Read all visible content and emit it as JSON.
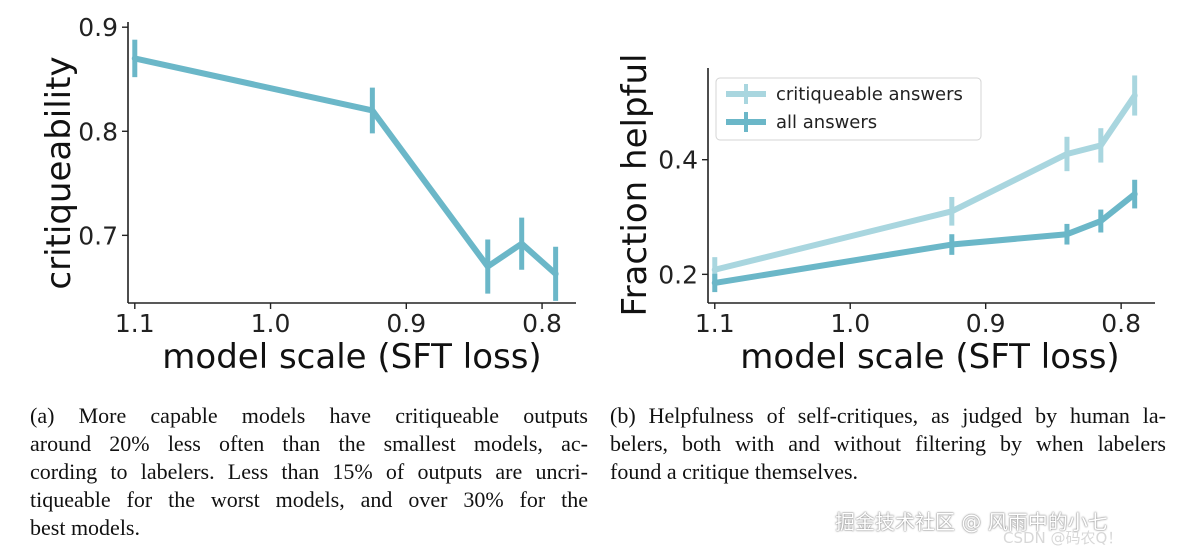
{
  "chart_data": [
    {
      "type": "line",
      "title": "",
      "xlabel": "model scale (SFT loss)",
      "ylabel": "critiqueability",
      "x_inverted": true,
      "xlim": [
        1.105,
        0.775
      ],
      "ylim": [
        0.635,
        0.905
      ],
      "xticks": [
        1.1,
        1.0,
        0.9,
        0.8
      ],
      "xtick_labels": [
        "1.1",
        "1.0",
        "0.9",
        "0.8"
      ],
      "yticks": [
        0.7,
        0.8,
        0.9
      ],
      "ytick_labels": [
        "0.7",
        "0.8",
        "0.9"
      ],
      "grid": false,
      "series": [
        {
          "name": "critiqueability",
          "color": "#6bb7c8",
          "x": [
            1.1,
            0.925,
            0.84,
            0.815,
            0.79
          ],
          "y": [
            0.87,
            0.82,
            0.67,
            0.692,
            0.663
          ],
          "yerr": [
            0.018,
            0.022,
            0.026,
            0.025,
            0.026
          ]
        }
      ]
    },
    {
      "type": "line",
      "title": "",
      "xlabel": "model scale (SFT loss)",
      "ylabel": "Fraction helpful",
      "x_inverted": true,
      "xlim": [
        1.105,
        0.775
      ],
      "ylim": [
        0.15,
        0.56
      ],
      "xticks": [
        1.1,
        1.0,
        0.9,
        0.8
      ],
      "xtick_labels": [
        "1.1",
        "1.0",
        "0.9",
        "0.8"
      ],
      "yticks": [
        0.2,
        0.4
      ],
      "ytick_labels": [
        "0.2",
        "0.4"
      ],
      "grid": false,
      "legend": {
        "placement": "top-left",
        "entries": [
          "critiqueable answers",
          "all answers"
        ]
      },
      "series": [
        {
          "name": "critiqueable answers",
          "color": "#a9d6df",
          "x": [
            1.1,
            0.925,
            0.84,
            0.815,
            0.79
          ],
          "y": [
            0.208,
            0.31,
            0.41,
            0.425,
            0.512
          ],
          "yerr": [
            0.022,
            0.025,
            0.03,
            0.03,
            0.035
          ]
        },
        {
          "name": "all answers",
          "color": "#6bb7c8",
          "x": [
            1.1,
            0.925,
            0.84,
            0.815,
            0.79
          ],
          "y": [
            0.185,
            0.252,
            0.27,
            0.293,
            0.34
          ],
          "yerr": [
            0.016,
            0.018,
            0.018,
            0.02,
            0.025
          ]
        }
      ]
    }
  ],
  "captions": {
    "a": {
      "lines": [
        "(a) More capable models have critiqueable outputs",
        "around 20% less often than the smallest models, ac-",
        "cording to labelers. Less than 15% of outputs are uncri-",
        "tiqueable for the worst models, and over 30% for the",
        "best models."
      ]
    },
    "b": {
      "lines": [
        "(b) Helpfulness of self-critiques, as judged by human la-",
        "belers, both with and without filtering by when labelers",
        "found a critique themselves."
      ]
    }
  },
  "watermark": {
    "main": "掘金技术社区 @ 风雨中的小七",
    "sub": "CSDN @码农Q！"
  }
}
